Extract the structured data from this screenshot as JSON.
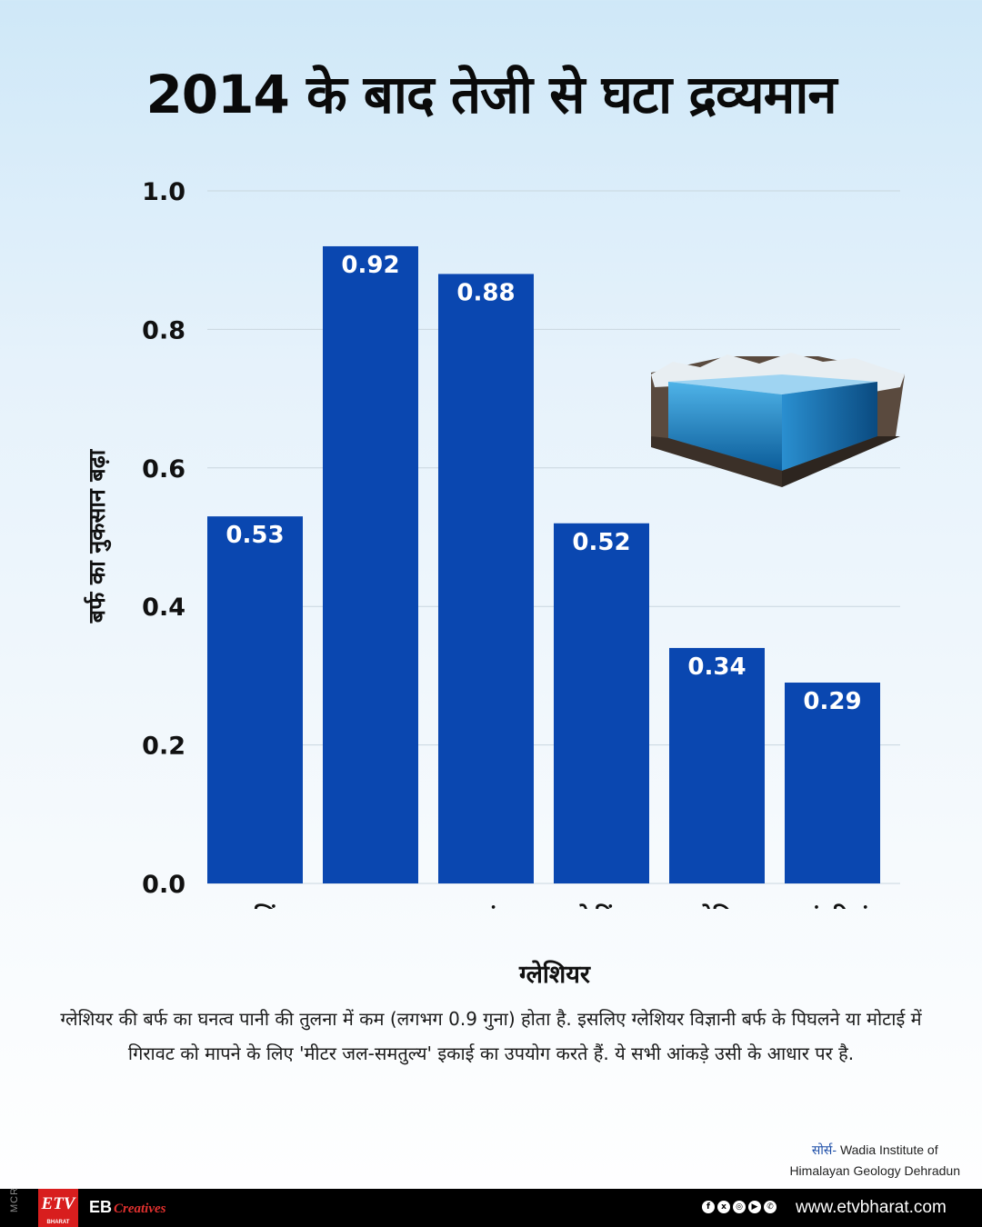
{
  "title": "2014 के बाद तेजी से घटा द्रव्यमान",
  "chart_data": {
    "type": "bar",
    "title": "2014 के बाद तेजी से घटा द्रव्यमान",
    "xlabel": "ग्लेशियर",
    "ylabel": "बर्फ का नुकसान बढ़ा",
    "categories": [
      "खतलिंग",
      "अनाम",
      "दूधगंगा",
      "फेटिंग",
      "जोगिन",
      "रतंगरियां"
    ],
    "values": [
      0.53,
      0.92,
      0.88,
      0.52,
      0.34,
      0.29
    ],
    "value_labels": [
      "0.53",
      "0.92",
      "0.88",
      "0.52",
      "0.34",
      "0.29"
    ],
    "ylim": [
      0,
      1.0
    ],
    "yticks": [
      "0.0",
      "0.2",
      "0.4",
      "0.6",
      "0.8",
      "1.0"
    ],
    "grid": true,
    "bar_color": "#0a47b0"
  },
  "note": "ग्लेशियर की बर्फ का घनत्व पानी की तुलना में कम (लगभग 0.9 गुना) होता है. इसलिए ग्लेशियर विज्ञानी बर्फ के पिघलने या मोटाई में गिरावट को मापने के लिए 'मीटर जल-समतुल्य' इकाई का उपयोग करते हैं. ये सभी आंकड़े उसी के आधार पर है.",
  "source": {
    "label": "सोर्स-",
    "line1": "Wadia Institute of",
    "line2": "Himalayan Geology Dehradun"
  },
  "footer": {
    "mcr": "MCR",
    "logo": "ETV",
    "logo_sub": "BHARAT",
    "brand": "EB",
    "brand_sub": "Creatives",
    "social_icons": [
      "facebook-icon",
      "x-icon",
      "instagram-icon",
      "youtube-icon",
      "whatsapp-icon"
    ],
    "url": "www.etvbharat.com"
  },
  "colors": {
    "accent": "#0a47b0",
    "footer_bg": "#000000",
    "logo_red": "#d81e1e"
  }
}
